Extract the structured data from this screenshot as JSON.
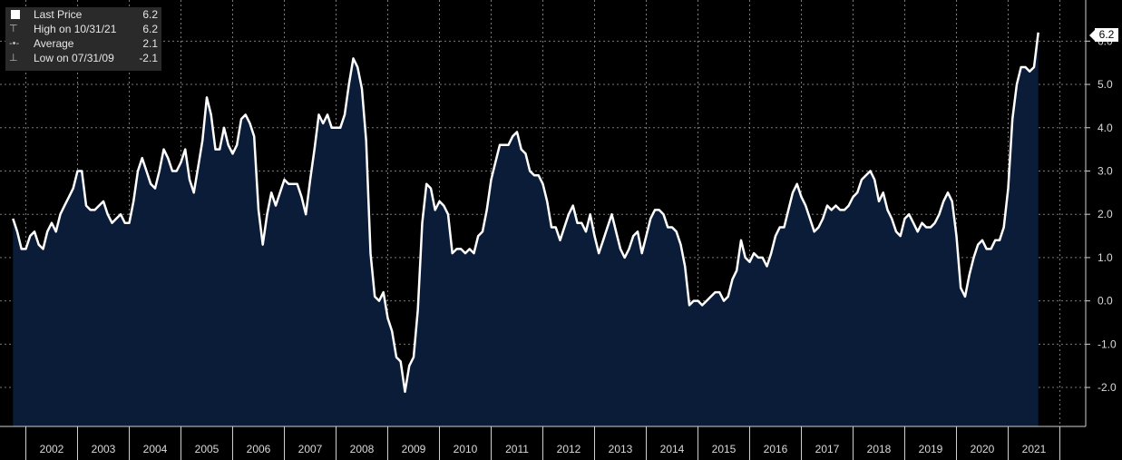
{
  "chart_data": {
    "type": "area",
    "x_start": 2001.75,
    "x_step": 0.0833333,
    "values": [
      1.9,
      1.6,
      1.2,
      1.2,
      1.5,
      1.6,
      1.3,
      1.2,
      1.6,
      1.8,
      1.6,
      2.0,
      2.2,
      2.4,
      2.6,
      3.0,
      3.0,
      2.2,
      2.1,
      2.1,
      2.2,
      2.3,
      2.0,
      1.8,
      1.9,
      2.0,
      1.8,
      1.8,
      2.3,
      3.0,
      3.3,
      3.0,
      2.7,
      2.6,
      3.0,
      3.5,
      3.3,
      3.0,
      3.0,
      3.2,
      3.5,
      2.8,
      2.5,
      3.1,
      3.7,
      4.7,
      4.3,
      3.5,
      3.5,
      4.0,
      3.6,
      3.4,
      3.6,
      4.2,
      4.3,
      4.1,
      3.8,
      2.1,
      1.3,
      2.0,
      2.5,
      2.2,
      2.5,
      2.8,
      2.7,
      2.7,
      2.7,
      2.4,
      2.0,
      2.8,
      3.5,
      4.3,
      4.1,
      4.3,
      4.0,
      4.0,
      4.0,
      4.3,
      5.0,
      5.6,
      5.4,
      4.9,
      3.7,
      1.1,
      0.1,
      0.0,
      0.2,
      -0.4,
      -0.7,
      -1.3,
      -1.4,
      -2.1,
      -1.5,
      -1.3,
      -0.2,
      1.8,
      2.7,
      2.6,
      2.1,
      2.3,
      2.2,
      2.0,
      1.1,
      1.2,
      1.2,
      1.1,
      1.2,
      1.1,
      1.5,
      1.6,
      2.1,
      2.8,
      3.2,
      3.6,
      3.6,
      3.6,
      3.8,
      3.9,
      3.5,
      3.4,
      3.0,
      2.9,
      2.9,
      2.7,
      2.3,
      1.7,
      1.7,
      1.4,
      1.7,
      2.0,
      2.2,
      1.8,
      1.8,
      1.6,
      2.0,
      1.5,
      1.1,
      1.4,
      1.7,
      2.0,
      1.6,
      1.2,
      1.0,
      1.2,
      1.5,
      1.6,
      1.1,
      1.5,
      1.9,
      2.1,
      2.1,
      2.0,
      1.7,
      1.7,
      1.6,
      1.3,
      0.8,
      -0.1,
      0.0,
      0.0,
      -0.1,
      0.0,
      0.1,
      0.2,
      0.2,
      0.0,
      0.1,
      0.5,
      0.7,
      1.4,
      1.0,
      0.9,
      1.1,
      1.0,
      1.0,
      0.8,
      1.1,
      1.5,
      1.7,
      1.7,
      2.1,
      2.5,
      2.7,
      2.4,
      2.2,
      1.9,
      1.6,
      1.7,
      1.9,
      2.2,
      2.1,
      2.2,
      2.1,
      2.1,
      2.2,
      2.4,
      2.5,
      2.8,
      2.9,
      3.0,
      2.8,
      2.3,
      2.5,
      2.1,
      1.9,
      1.6,
      1.5,
      1.9,
      2.0,
      1.8,
      1.6,
      1.8,
      1.7,
      1.7,
      1.8,
      2.0,
      2.3,
      2.5,
      2.3,
      1.5,
      0.3,
      0.1,
      0.6,
      1.0,
      1.3,
      1.4,
      1.2,
      1.2,
      1.4,
      1.4,
      1.7,
      2.6,
      4.2,
      5.0,
      5.4,
      5.4,
      5.3,
      5.4,
      6.2
    ],
    "ylim": [
      -2.9,
      6.95
    ],
    "xlim": [
      2001.5,
      2022.5
    ],
    "y_ticks": [
      -2.0,
      -1.0,
      0.0,
      1.0,
      2.0,
      3.0,
      4.0,
      5.0,
      6.0
    ],
    "y_tick_labels": [
      "-2.0",
      "-1.0",
      "0.0",
      "1.0",
      "2.0",
      "3.0",
      "4.0",
      "5.0",
      "6.0"
    ],
    "x_ticks": [
      2002,
      2003,
      2004,
      2005,
      2006,
      2007,
      2008,
      2009,
      2010,
      2011,
      2012,
      2013,
      2014,
      2015,
      2016,
      2017,
      2018,
      2019,
      2020,
      2021
    ],
    "x_tick_labels": [
      "2002",
      "2003",
      "2004",
      "2005",
      "2006",
      "2007",
      "2008",
      "2009",
      "2010",
      "2011",
      "2012",
      "2013",
      "2014",
      "2015",
      "2016",
      "2017",
      "2018",
      "2019",
      "2020",
      "2021"
    ],
    "grid": true,
    "legend_position": "top-left",
    "last_value_tag": "6.2",
    "colors": {
      "line": "#ffffff",
      "fill": "#0a1c38",
      "background": "#000000",
      "grid": "#7a7a7a",
      "axis_text": "#d9d9d9"
    }
  },
  "legend": {
    "items": [
      {
        "label": "Last Price",
        "value": "6.2"
      },
      {
        "label": "High on 10/31/21",
        "value": "6.2"
      },
      {
        "label": "Average",
        "value": "2.1"
      },
      {
        "label": "Low on 07/31/09",
        "value": "-2.1"
      }
    ]
  }
}
